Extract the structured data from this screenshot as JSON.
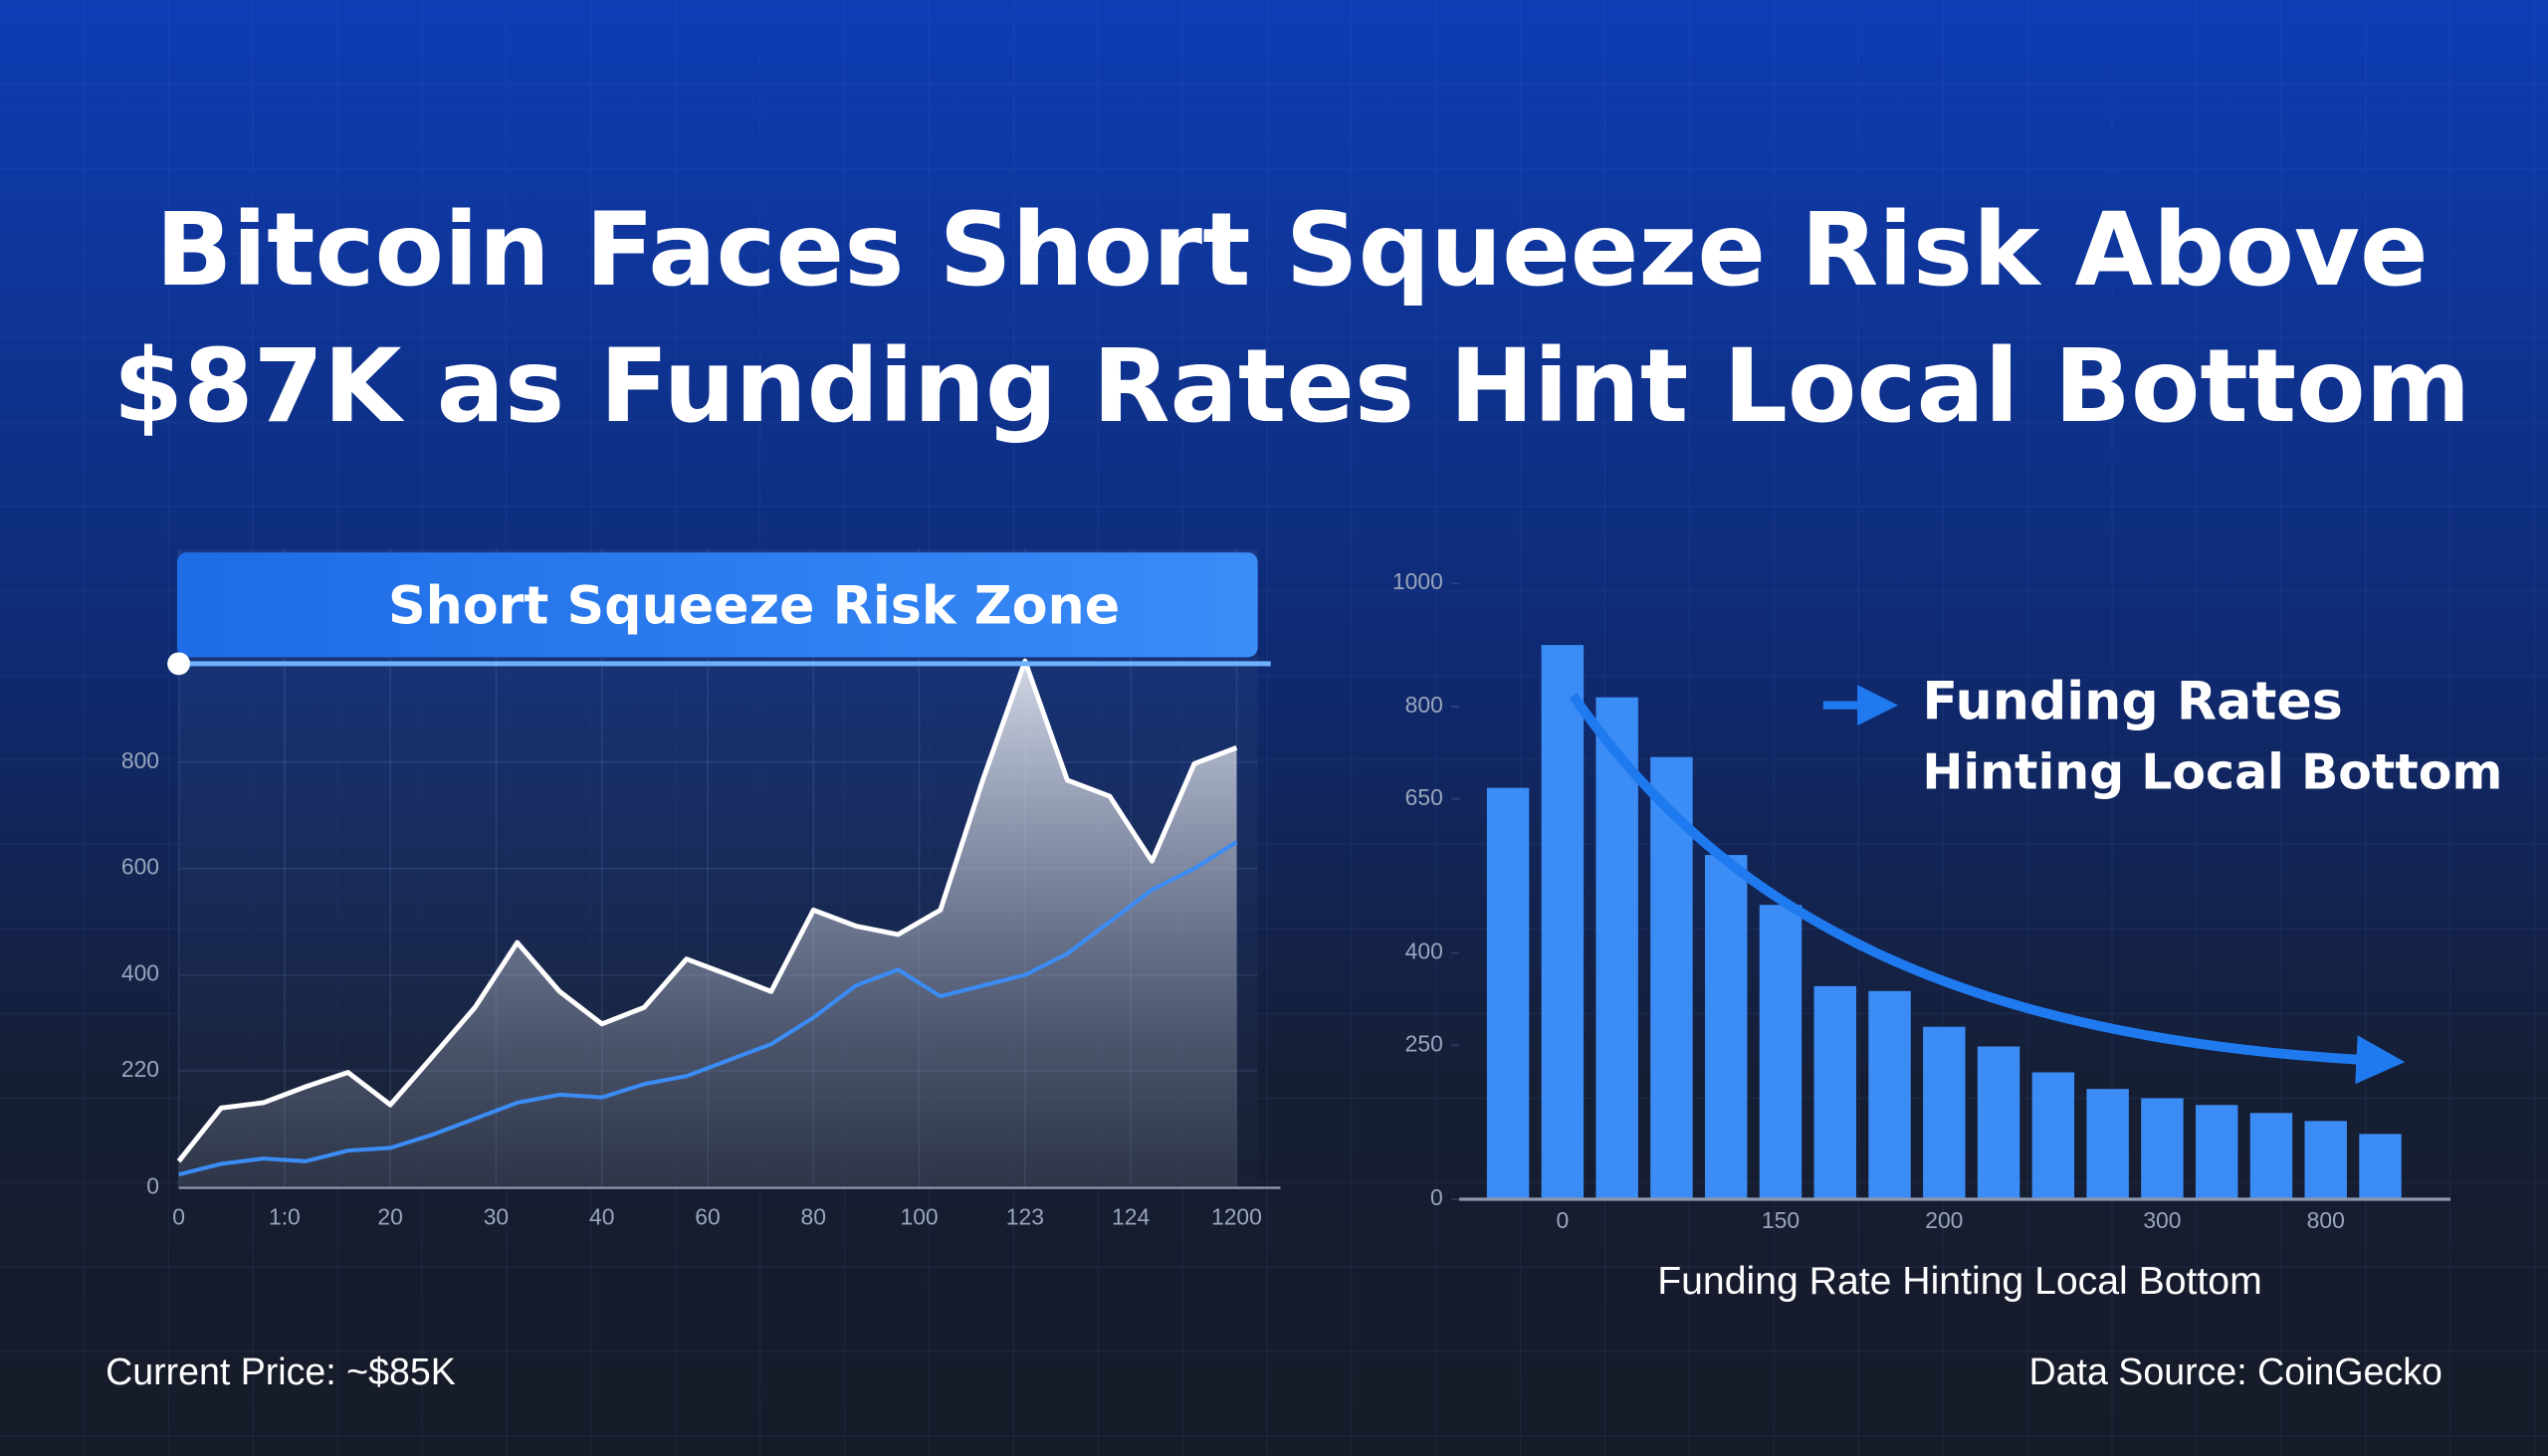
{
  "header": {
    "title_lines": [
      "Bitcoin Faces Short Squeeze Risk Above",
      "$87K as Funding Rates Hint Local Bottom"
    ]
  },
  "chart_data": [
    {
      "type": "line",
      "threshold": {
        "value": 985,
        "label": "Short Squeeze Risk Zone"
      },
      "x": [
        0,
        4,
        8,
        12,
        16,
        20,
        24,
        28,
        32,
        36,
        40,
        44,
        48,
        52,
        56,
        60,
        64,
        68,
        72,
        76,
        80,
        84,
        88,
        92,
        96,
        100
      ],
      "series": [
        {
          "color": "#ffffff",
          "values": [
            50,
            150,
            160,
            190,
            217,
            156,
            247,
            339,
            461,
            369,
            308,
            339,
            430,
            400,
            369,
            522,
            492,
            476,
            522,
            766,
            990,
            766,
            736,
            614,
            797,
            827
          ]
        },
        {
          "color": "#3b8cf5",
          "values": [
            25,
            45,
            55,
            50,
            70,
            75,
            100,
            130,
            160,
            175,
            170,
            195,
            210,
            240,
            270,
            320,
            380,
            410,
            360,
            380,
            400,
            440,
            500,
            560,
            600,
            650
          ]
        }
      ],
      "xlim": [
        0,
        102
      ],
      "xticks": [
        {
          "value": 0,
          "label": "0"
        },
        {
          "value": 10,
          "label": "1:0"
        },
        {
          "value": 20,
          "label": "20"
        },
        {
          "value": 30,
          "label": "30"
        },
        {
          "value": 40,
          "label": "40"
        },
        {
          "value": 50,
          "label": "60"
        },
        {
          "value": 60,
          "label": "80"
        },
        {
          "value": 70,
          "label": "100"
        },
        {
          "value": 80,
          "label": "123"
        },
        {
          "value": 90,
          "label": "124"
        },
        {
          "value": 100,
          "label": "1200"
        }
      ],
      "ylim": [
        0,
        1200
      ],
      "yticks": [
        0,
        220,
        400,
        600,
        800
      ],
      "grid": true
    },
    {
      "type": "bar",
      "categories": [
        null,
        "0",
        null,
        null,
        null,
        "150",
        null,
        null,
        "200",
        null,
        null,
        null,
        "300",
        null,
        null,
        "800",
        null
      ],
      "values": [
        668,
        900,
        815,
        718,
        559,
        478,
        346,
        338,
        280,
        248,
        206,
        179,
        164,
        153,
        140,
        127,
        106
      ],
      "color": "#3b8cf5",
      "ylim": [
        0,
        1000
      ],
      "yticks": [
        0,
        250,
        400,
        650,
        800,
        1000
      ],
      "annotation": [
        "Funding Rates",
        "Hinting Local Bottom"
      ],
      "xlabel": "Funding Rate Hinting Local Bottom"
    }
  ],
  "footer": {
    "left": "Current Price: ~$85K",
    "right": "Data Source: CoinGecko"
  }
}
